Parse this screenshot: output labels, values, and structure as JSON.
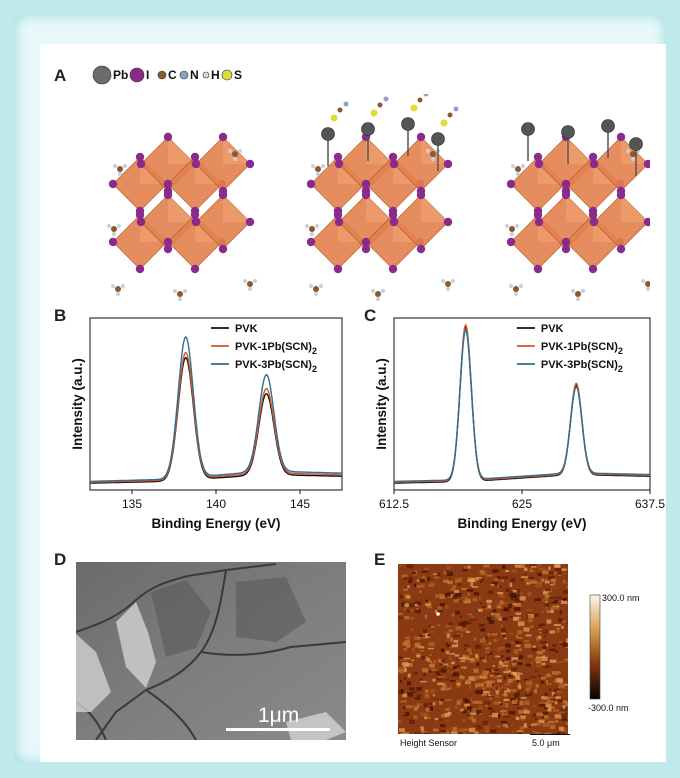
{
  "panels": {
    "a": "A",
    "b": "B",
    "c": "C",
    "d": "D",
    "e": "E"
  },
  "legend_a": {
    "items": [
      {
        "symbol": "Pb",
        "color": "#6b6b6b"
      },
      {
        "symbol": "I",
        "color": "#8a2a8c"
      },
      {
        "symbol": "C",
        "color": "#8a5a2b"
      },
      {
        "symbol": "N",
        "color": "#8fa0c8"
      },
      {
        "symbol": "H",
        "color": "#d8d8d8"
      },
      {
        "symbol": "S",
        "color": "#e0dc3c"
      }
    ]
  },
  "colors": {
    "pvk": "#111111",
    "pvk1": "#d9532c",
    "pvk3": "#2f6f8f",
    "octahedron": "#e3814e",
    "iodine": "#8a2a8c"
  },
  "chart_data": [
    {
      "id": "B",
      "type": "line",
      "xlabel": "Binding Energy (eV)",
      "ylabel": "Intensity (a.u.)",
      "xlim": [
        132.5,
        147.5
      ],
      "xticks": [
        135,
        140,
        145
      ],
      "peaks": [
        138.2,
        143.0
      ],
      "series": [
        {
          "name": "PVK",
          "color": "#111111",
          "peak_heights": [
            0.77,
            0.56
          ],
          "baseline_low": 0.04,
          "baseline_high": 0.09
        },
        {
          "name": "PVK-1Pb(SCN)",
          "name_sub": "2",
          "color": "#d9532c",
          "peak_heights": [
            0.8,
            0.59
          ],
          "baseline_low": 0.045,
          "baseline_high": 0.1
        },
        {
          "name": "PVK-3Pb(SCN)",
          "name_sub": "2",
          "color": "#2f6f8f",
          "peak_heights": [
            0.89,
            0.67
          ],
          "baseline_low": 0.05,
          "baseline_high": 0.11
        }
      ]
    },
    {
      "id": "C",
      "type": "line",
      "xlabel": "Binding Energy (eV)",
      "ylabel": "Intensity (a.u.)",
      "xlim": [
        612.5,
        637.5
      ],
      "xticks": [
        612.5,
        625.0,
        637.5
      ],
      "peaks": [
        619.5,
        630.3
      ],
      "series": [
        {
          "name": "PVK",
          "color": "#111111",
          "peak_heights": [
            0.95,
            0.61
          ],
          "baseline_low": 0.04,
          "baseline_high": 0.09
        },
        {
          "name": "PVK-1Pb(SCN)",
          "name_sub": "2",
          "color": "#d9532c",
          "peak_heights": [
            0.96,
            0.62
          ],
          "baseline_low": 0.045,
          "baseline_high": 0.095
        },
        {
          "name": "PVK-3Pb(SCN)",
          "name_sub": "2",
          "color": "#2f6f8f",
          "peak_heights": [
            0.93,
            0.6
          ],
          "baseline_low": 0.05,
          "baseline_high": 0.1
        }
      ]
    }
  ],
  "sem": {
    "scale_label": "1μm"
  },
  "afm": {
    "top_label": "300.0 nm",
    "bottom_label": "-300.0 nm",
    "caption": "Height Sensor",
    "scale_label": "5.0 μm"
  }
}
